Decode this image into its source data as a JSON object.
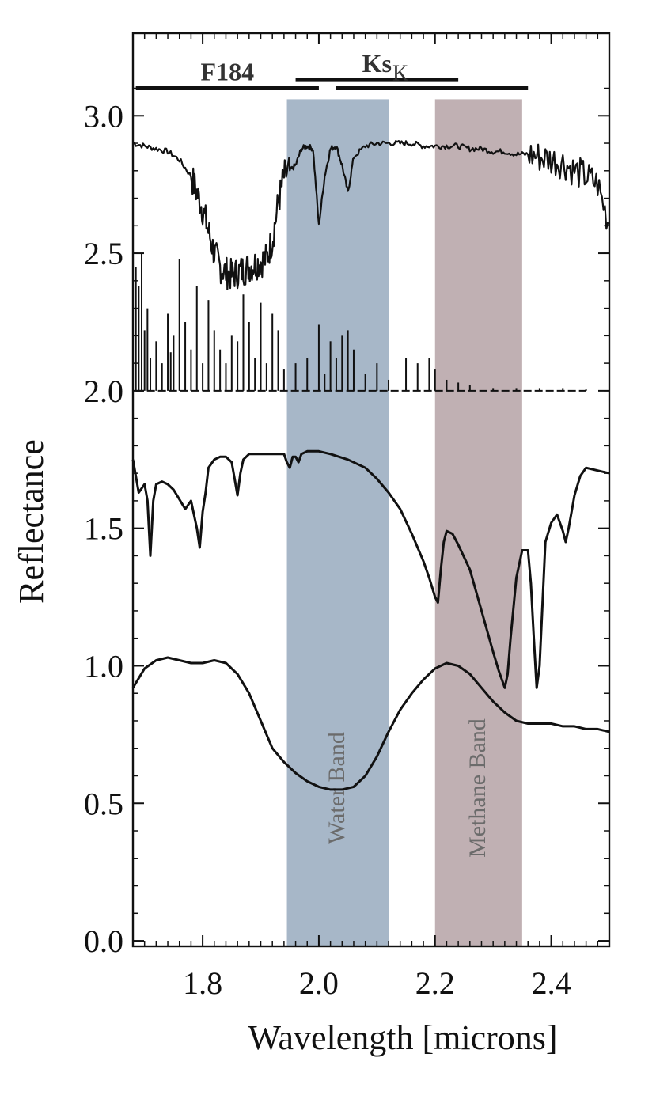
{
  "chart_data": {
    "type": "line",
    "title": "",
    "xlabel": "Wavelength [microns]",
    "ylabel": "Reflectance",
    "xlim": [
      1.68,
      2.5
    ],
    "ylim": [
      -0.02,
      3.3
    ],
    "grid": false,
    "x_ticks": [
      {
        "value": 1.8,
        "label": "1.8"
      },
      {
        "value": 2.0,
        "label": "2.0"
      },
      {
        "value": 2.2,
        "label": "2.2"
      },
      {
        "value": 2.4,
        "label": "2.4"
      }
    ],
    "y_ticks": [
      {
        "value": 0.0,
        "label": "0.0"
      },
      {
        "value": 0.5,
        "label": "0.5"
      },
      {
        "value": 1.0,
        "label": "1.0"
      },
      {
        "value": 1.5,
        "label": "1.5"
      },
      {
        "value": 2.0,
        "label": "2.0"
      },
      {
        "value": 2.5,
        "label": "2.5"
      },
      {
        "value": 3.0,
        "label": "3.0"
      }
    ],
    "shaded_bands": [
      {
        "label": "Water Band",
        "x_range": [
          1.945,
          2.12
        ],
        "color": "#8ea3b8"
      },
      {
        "label": "Methane Band",
        "x_range": [
          2.2,
          2.35
        ],
        "color": "#ae9a9d"
      }
    ],
    "filter_bars": [
      {
        "label": "F184",
        "x_range": [
          1.685,
          2.0
        ],
        "y": 3.1
      },
      {
        "label": "Ks",
        "x_range": [
          1.96,
          2.24
        ],
        "y": 3.13
      },
      {
        "label": "K",
        "x_range": [
          2.03,
          2.36
        ],
        "y": 3.1
      }
    ],
    "series": [
      {
        "style": "noisy-line",
        "color": "#111111",
        "x": [
          1.68,
          1.7,
          1.72,
          1.74,
          1.76,
          1.78,
          1.79,
          1.8,
          1.81,
          1.82,
          1.83,
          1.84,
          1.85,
          1.86,
          1.87,
          1.88,
          1.89,
          1.9,
          1.91,
          1.92,
          1.93,
          1.94,
          1.95,
          1.96,
          1.97,
          1.98,
          1.99,
          2.0,
          2.01,
          2.02,
          2.03,
          2.04,
          2.05,
          2.06,
          2.08,
          2.1,
          2.12,
          2.14,
          2.16,
          2.18,
          2.2,
          2.22,
          2.24,
          2.26,
          2.28,
          2.3,
          2.32,
          2.34,
          2.36,
          2.38,
          2.4,
          2.42,
          2.44,
          2.46,
          2.48,
          2.5
        ],
        "y": [
          2.9,
          2.89,
          2.88,
          2.87,
          2.84,
          2.78,
          2.72,
          2.66,
          2.58,
          2.5,
          2.45,
          2.43,
          2.42,
          2.43,
          2.44,
          2.45,
          2.46,
          2.47,
          2.48,
          2.55,
          2.68,
          2.78,
          2.8,
          2.82,
          2.88,
          2.89,
          2.88,
          2.6,
          2.78,
          2.88,
          2.89,
          2.82,
          2.72,
          2.85,
          2.89,
          2.9,
          2.9,
          2.9,
          2.9,
          2.89,
          2.89,
          2.89,
          2.89,
          2.88,
          2.88,
          2.87,
          2.87,
          2.86,
          2.86,
          2.85,
          2.84,
          2.83,
          2.8,
          2.78,
          2.75,
          2.6
        ]
      },
      {
        "style": "spikes",
        "color": "#111111",
        "baseline": 2.0,
        "x": [
          1.685,
          1.69,
          1.695,
          1.7,
          1.705,
          1.71,
          1.72,
          1.73,
          1.74,
          1.745,
          1.75,
          1.76,
          1.77,
          1.78,
          1.79,
          1.8,
          1.81,
          1.82,
          1.83,
          1.84,
          1.85,
          1.86,
          1.87,
          1.88,
          1.89,
          1.9,
          1.91,
          1.92,
          1.93,
          1.94,
          1.96,
          1.98,
          2.0,
          2.01,
          2.02,
          2.03,
          2.04,
          2.05,
          2.06,
          2.08,
          2.1,
          2.12,
          2.15,
          2.17,
          2.19,
          2.2,
          2.22,
          2.24,
          2.26,
          2.3,
          2.34,
          2.38,
          2.42,
          2.46
        ],
        "y": [
          2.45,
          2.38,
          2.5,
          2.22,
          2.3,
          2.12,
          2.18,
          2.1,
          2.28,
          2.14,
          2.2,
          2.48,
          2.25,
          2.15,
          2.38,
          2.1,
          2.33,
          2.22,
          2.15,
          2.1,
          2.2,
          2.18,
          2.35,
          2.25,
          2.12,
          2.32,
          2.1,
          2.28,
          2.22,
          2.08,
          2.1,
          2.12,
          2.24,
          2.06,
          2.18,
          2.12,
          2.2,
          2.22,
          2.15,
          2.06,
          2.1,
          2.04,
          2.12,
          2.1,
          2.12,
          2.08,
          2.04,
          2.03,
          2.02,
          2.01,
          2.01,
          2.01,
          2.01,
          2.005
        ]
      },
      {
        "style": "line",
        "color": "#111111",
        "x": [
          1.68,
          1.69,
          1.7,
          1.705,
          1.71,
          1.715,
          1.72,
          1.73,
          1.74,
          1.75,
          1.77,
          1.78,
          1.79,
          1.795,
          1.8,
          1.805,
          1.81,
          1.82,
          1.83,
          1.84,
          1.85,
          1.855,
          1.86,
          1.865,
          1.87,
          1.88,
          1.9,
          1.92,
          1.94,
          1.945,
          1.95,
          1.955,
          1.96,
          1.965,
          1.97,
          1.98,
          2.0,
          2.02,
          2.05,
          2.08,
          2.1,
          2.12,
          2.14,
          2.16,
          2.18,
          2.19,
          2.2,
          2.205,
          2.21,
          2.215,
          2.22,
          2.23,
          2.24,
          2.26,
          2.28,
          2.3,
          2.31,
          2.32,
          2.325,
          2.33,
          2.34,
          2.35,
          2.36,
          2.365,
          2.37,
          2.375,
          2.38,
          2.39,
          2.4,
          2.41,
          2.42,
          2.425,
          2.43,
          2.44,
          2.45,
          2.46,
          2.48,
          2.5
        ],
        "y": [
          1.75,
          1.63,
          1.66,
          1.6,
          1.4,
          1.6,
          1.66,
          1.67,
          1.66,
          1.64,
          1.57,
          1.6,
          1.5,
          1.43,
          1.56,
          1.63,
          1.72,
          1.75,
          1.76,
          1.76,
          1.74,
          1.68,
          1.62,
          1.7,
          1.75,
          1.77,
          1.77,
          1.77,
          1.77,
          1.74,
          1.72,
          1.76,
          1.76,
          1.74,
          1.77,
          1.78,
          1.78,
          1.77,
          1.75,
          1.72,
          1.68,
          1.63,
          1.57,
          1.48,
          1.38,
          1.32,
          1.25,
          1.23,
          1.35,
          1.45,
          1.49,
          1.48,
          1.44,
          1.35,
          1.2,
          1.05,
          0.98,
          0.92,
          0.97,
          1.1,
          1.32,
          1.42,
          1.42,
          1.3,
          1.1,
          0.92,
          1.0,
          1.45,
          1.52,
          1.55,
          1.49,
          1.45,
          1.5,
          1.62,
          1.69,
          1.72,
          1.71,
          1.7
        ]
      },
      {
        "style": "line",
        "color": "#111111",
        "x": [
          1.68,
          1.7,
          1.72,
          1.74,
          1.76,
          1.78,
          1.8,
          1.82,
          1.84,
          1.86,
          1.88,
          1.9,
          1.92,
          1.94,
          1.96,
          1.98,
          2.0,
          2.02,
          2.04,
          2.06,
          2.08,
          2.1,
          2.12,
          2.14,
          2.16,
          2.18,
          2.2,
          2.22,
          2.24,
          2.26,
          2.28,
          2.3,
          2.32,
          2.34,
          2.36,
          2.38,
          2.4,
          2.42,
          2.44,
          2.46,
          2.48,
          2.5
        ],
        "y": [
          0.92,
          0.99,
          1.02,
          1.03,
          1.02,
          1.01,
          1.01,
          1.02,
          1.01,
          0.97,
          0.9,
          0.8,
          0.7,
          0.65,
          0.61,
          0.58,
          0.56,
          0.55,
          0.55,
          0.56,
          0.6,
          0.67,
          0.76,
          0.84,
          0.9,
          0.95,
          0.99,
          1.01,
          1.0,
          0.97,
          0.92,
          0.87,
          0.83,
          0.8,
          0.79,
          0.79,
          0.79,
          0.78,
          0.78,
          0.77,
          0.77,
          0.76
        ]
      }
    ]
  }
}
